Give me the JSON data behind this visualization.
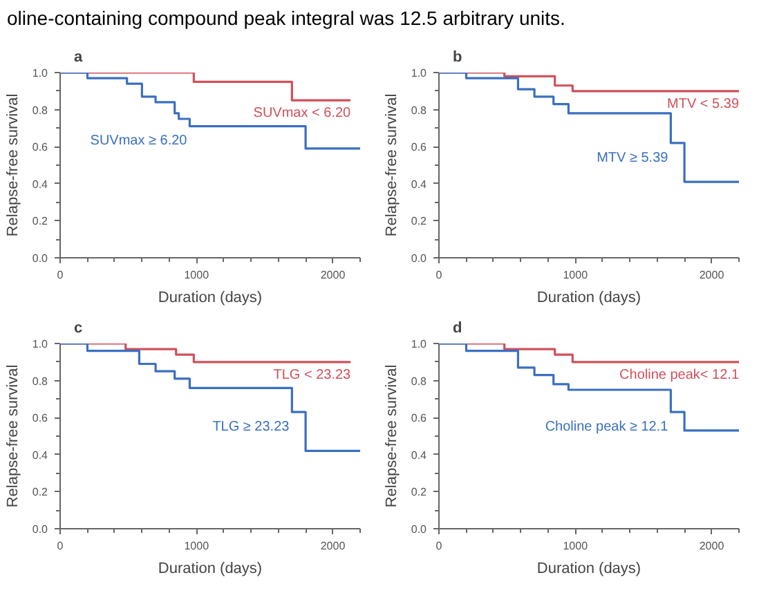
{
  "chart_data": [
    {
      "type": "step",
      "title": "a",
      "annotations": [
        "oline-containing compound peak integral was 12.5 arbitrary units."
      ],
      "xlabel": "Duration (days)",
      "ylabel": "Relapse-free survival",
      "xlim": [
        0,
        2200
      ],
      "ylim": [
        0,
        1
      ],
      "line_style": "solid",
      "marker": "none",
      "legend": false,
      "grid": false,
      "xticks": [
        0,
        {
          "value": 200,
          "label": null
        },
        {
          "value": 400,
          "label": null
        },
        {
          "value": 600,
          "label": null
        },
        {
          "value": 800,
          "label": null
        },
        1000,
        {
          "value": 1200,
          "label": null
        },
        {
          "value": 1400,
          "label": null
        },
        {
          "value": 1600,
          "label": null
        },
        {
          "value": 1800,
          "label": null
        },
        2000,
        {
          "value": 2200,
          "label": null
        }
      ],
      "yticks": [
        {
          "value": 0,
          "label": "0.0"
        },
        {
          "value": 0.1,
          "label": null
        },
        0.2,
        {
          "value": 0.3,
          "label": null
        },
        0.4,
        {
          "value": 0.5,
          "label": null
        },
        0.6,
        {
          "value": 0.7,
          "label": null
        },
        0.8,
        {
          "value": 0.9,
          "label": null
        },
        {
          "value": 1,
          "label": "1.0"
        }
      ],
      "series": [
        {
          "name": "SUVmax < 6.20",
          "color": "#d0505a",
          "x": [
            0,
            980,
            1700,
            2130
          ],
          "values": [
            1,
            0.95,
            0.85,
            0.85
          ]
        },
        {
          "name": "SUVmax ≥ 6.20",
          "color": "#3a6fc0",
          "x": [
            0,
            200,
            490,
            600,
            700,
            840,
            870,
            950,
            1800,
            2200
          ],
          "values": [
            1,
            0.97,
            0.94,
            0.87,
            0.84,
            0.78,
            0.75,
            0.71,
            0.59,
            0.59
          ]
        }
      ]
    },
    {
      "type": "step",
      "title": "b",
      "xlabel": "Duration (days)",
      "ylabel": "Relapse-free survival",
      "xlim": [
        0,
        2200
      ],
      "ylim": [
        0,
        1
      ],
      "line_style": "solid",
      "marker": "none",
      "legend": false,
      "grid": false,
      "xticks": [
        0,
        {
          "value": 200,
          "label": null
        },
        {
          "value": 400,
          "label": null
        },
        {
          "value": 600,
          "label": null
        },
        {
          "value": 800,
          "label": null
        },
        1000,
        {
          "value": 1200,
          "label": null
        },
        {
          "value": 1400,
          "label": null
        },
        {
          "value": 1600,
          "label": null
        },
        {
          "value": 1800,
          "label": null
        },
        2000,
        {
          "value": 2200,
          "label": null
        }
      ],
      "yticks": [
        {
          "value": 0,
          "label": "0.0"
        },
        {
          "value": 0.1,
          "label": null
        },
        0.2,
        {
          "value": 0.3,
          "label": null
        },
        0.4,
        {
          "value": 0.5,
          "label": null
        },
        0.6,
        {
          "value": 0.7,
          "label": null
        },
        0.8,
        {
          "value": 0.9,
          "label": null
        },
        {
          "value": 1,
          "label": "1.0"
        }
      ],
      "series": [
        {
          "name": "MTV < 5.39",
          "color": "#d0505a",
          "x": [
            0,
            480,
            850,
            980,
            2200
          ],
          "values": [
            1,
            0.98,
            0.93,
            0.9,
            0.9
          ]
        },
        {
          "name": "MTV ≥ 5.39",
          "color": "#3a6fc0",
          "x": [
            0,
            200,
            580,
            700,
            840,
            950,
            1700,
            1800,
            2200
          ],
          "values": [
            1,
            0.97,
            0.91,
            0.87,
            0.83,
            0.78,
            0.62,
            0.41,
            0.41
          ]
        }
      ]
    },
    {
      "type": "step",
      "title": "c",
      "xlabel": "Duration (days)",
      "ylabel": "Relapse-free survival",
      "xlim": [
        0,
        2200
      ],
      "ylim": [
        0,
        1
      ],
      "line_style": "solid",
      "marker": "none",
      "legend": false,
      "grid": false,
      "xticks": [
        0,
        {
          "value": 200,
          "label": null
        },
        {
          "value": 400,
          "label": null
        },
        {
          "value": 600,
          "label": null
        },
        {
          "value": 800,
          "label": null
        },
        1000,
        {
          "value": 1200,
          "label": null
        },
        {
          "value": 1400,
          "label": null
        },
        {
          "value": 1600,
          "label": null
        },
        {
          "value": 1800,
          "label": null
        },
        2000,
        {
          "value": 2200,
          "label": null
        }
      ],
      "yticks": [
        {
          "value": 0,
          "label": "0.0"
        },
        {
          "value": 0.1,
          "label": null
        },
        0.2,
        {
          "value": 0.3,
          "label": null
        },
        0.4,
        {
          "value": 0.5,
          "label": null
        },
        0.6,
        {
          "value": 0.7,
          "label": null
        },
        0.8,
        {
          "value": 0.9,
          "label": null
        },
        {
          "value": 1,
          "label": "1.0"
        }
      ],
      "series": [
        {
          "name": "TLG < 23.23",
          "color": "#d0505a",
          "x": [
            0,
            480,
            850,
            980,
            2130
          ],
          "values": [
            1,
            0.97,
            0.94,
            0.9,
            0.9
          ]
        },
        {
          "name": "TLG ≥ 23.23",
          "color": "#3a6fc0",
          "x": [
            0,
            200,
            580,
            700,
            840,
            950,
            1700,
            1800,
            2200
          ],
          "values": [
            1,
            0.96,
            0.89,
            0.85,
            0.81,
            0.76,
            0.63,
            0.42,
            0.42
          ]
        }
      ]
    },
    {
      "type": "step",
      "title": "d",
      "xlabel": "Duration (days)",
      "ylabel": "Relapse-free survival",
      "xlim": [
        0,
        2200
      ],
      "ylim": [
        0,
        1
      ],
      "line_style": "solid",
      "marker": "none",
      "legend": false,
      "grid": false,
      "xticks": [
        0,
        {
          "value": 200,
          "label": null
        },
        {
          "value": 400,
          "label": null
        },
        {
          "value": 600,
          "label": null
        },
        {
          "value": 800,
          "label": null
        },
        1000,
        {
          "value": 1200,
          "label": null
        },
        {
          "value": 1400,
          "label": null
        },
        {
          "value": 1600,
          "label": null
        },
        {
          "value": 1800,
          "label": null
        },
        2000,
        {
          "value": 2200,
          "label": null
        }
      ],
      "yticks": [
        {
          "value": 0,
          "label": "0.0"
        },
        {
          "value": 0.1,
          "label": null
        },
        0.2,
        {
          "value": 0.3,
          "label": null
        },
        0.4,
        {
          "value": 0.5,
          "label": null
        },
        0.6,
        {
          "value": 0.7,
          "label": null
        },
        0.8,
        {
          "value": 0.9,
          "label": null
        },
        {
          "value": 1,
          "label": "1.0"
        }
      ],
      "series": [
        {
          "name": "Choline peak< 12.1",
          "color": "#d0505a",
          "x": [
            0,
            480,
            850,
            980,
            2200
          ],
          "values": [
            1,
            0.97,
            0.94,
            0.9,
            0.9
          ]
        },
        {
          "name": "Choline peak ≥ 12.1",
          "color": "#3a6fc0",
          "x": [
            0,
            200,
            580,
            700,
            840,
            950,
            1700,
            1800,
            2200
          ],
          "values": [
            1,
            0.96,
            0.87,
            0.83,
            0.78,
            0.75,
            0.63,
            0.53,
            0.53
          ]
        }
      ]
    }
  ]
}
